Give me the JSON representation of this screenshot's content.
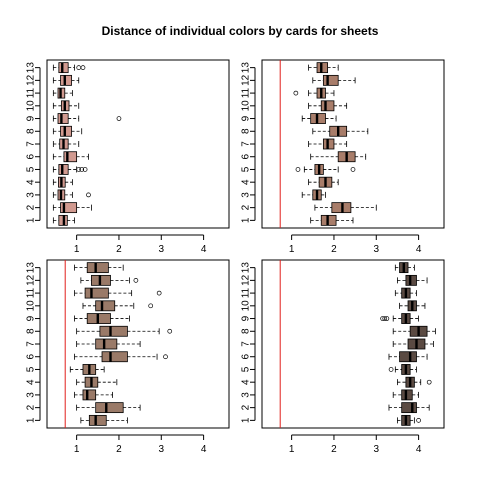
{
  "title": "Distance of individual colors by cards for sheets",
  "colors": {
    "box_fills": [
      "#d19a90",
      "#a87d6a",
      "#9a7a68",
      "#5a4a42"
    ],
    "reference_line": "#e0201c",
    "axes": "#000000"
  },
  "chart_data": [
    {
      "type": "boxplot",
      "orientation": "horizontal",
      "position": "top-left",
      "categories": [
        "1",
        "2",
        "3",
        "4",
        "5",
        "6",
        "7",
        "8",
        "9",
        "10",
        "11",
        "12",
        "13"
      ],
      "xticks": [
        1,
        2,
        3,
        4
      ],
      "xlim": [
        0.3,
        4.6
      ],
      "reference_line": null,
      "boxes": [
        {
          "min": 0.45,
          "q1": 0.58,
          "median": 0.7,
          "q3": 0.78,
          "max": 0.95,
          "outliers": []
        },
        {
          "min": 0.45,
          "q1": 0.62,
          "median": 0.7,
          "q3": 1.0,
          "max": 1.35,
          "outliers": []
        },
        {
          "min": 0.45,
          "q1": 0.56,
          "median": 0.63,
          "q3": 0.72,
          "max": 0.9,
          "outliers": [
            1.28
          ]
        },
        {
          "min": 0.45,
          "q1": 0.57,
          "median": 0.64,
          "q3": 0.73,
          "max": 0.9,
          "outliers": []
        },
        {
          "min": 0.45,
          "q1": 0.58,
          "median": 0.66,
          "q3": 0.8,
          "max": 1.0,
          "outliers": [
            1.05,
            1.12,
            1.2
          ]
        },
        {
          "min": 0.45,
          "q1": 0.7,
          "median": 0.78,
          "q3": 1.0,
          "max": 1.28,
          "outliers": []
        },
        {
          "min": 0.45,
          "q1": 0.6,
          "median": 0.69,
          "q3": 0.8,
          "max": 1.05,
          "outliers": []
        },
        {
          "min": 0.45,
          "q1": 0.62,
          "median": 0.72,
          "q3": 0.88,
          "max": 1.12,
          "outliers": []
        },
        {
          "min": 0.45,
          "q1": 0.56,
          "median": 0.64,
          "q3": 0.8,
          "max": 1.05,
          "outliers": [
            2.0
          ]
        },
        {
          "min": 0.45,
          "q1": 0.64,
          "median": 0.72,
          "q3": 0.82,
          "max": 1.05,
          "outliers": []
        },
        {
          "min": 0.45,
          "q1": 0.56,
          "median": 0.62,
          "q3": 0.72,
          "max": 0.9,
          "outliers": []
        },
        {
          "min": 0.45,
          "q1": 0.62,
          "median": 0.72,
          "q3": 0.88,
          "max": 1.05,
          "outliers": []
        },
        {
          "min": 0.45,
          "q1": 0.58,
          "median": 0.66,
          "q3": 0.8,
          "max": 0.95,
          "outliers": [
            1.05,
            1.15
          ]
        }
      ]
    },
    {
      "type": "boxplot",
      "orientation": "horizontal",
      "position": "top-right",
      "categories": [
        "1",
        "2",
        "3",
        "4",
        "5",
        "6",
        "7",
        "8",
        "9",
        "10",
        "11",
        "12",
        "13"
      ],
      "xticks": [
        1,
        2,
        3,
        4
      ],
      "xlim": [
        0.3,
        4.6
      ],
      "reference_line": 0.73,
      "boxes": [
        {
          "min": 1.45,
          "q1": 1.7,
          "median": 1.85,
          "q3": 2.05,
          "max": 2.45,
          "outliers": []
        },
        {
          "min": 1.55,
          "q1": 1.95,
          "median": 2.2,
          "q3": 2.4,
          "max": 3.0,
          "outliers": []
        },
        {
          "min": 1.25,
          "q1": 1.5,
          "median": 1.6,
          "q3": 1.7,
          "max": 1.8,
          "outliers": []
        },
        {
          "min": 1.4,
          "q1": 1.65,
          "median": 1.8,
          "q3": 1.95,
          "max": 2.1,
          "outliers": []
        },
        {
          "min": 1.3,
          "q1": 1.55,
          "median": 1.65,
          "q3": 1.75,
          "max": 2.1,
          "outliers": [
            1.15,
            2.45
          ]
        },
        {
          "min": 1.45,
          "q1": 2.1,
          "median": 2.3,
          "q3": 2.5,
          "max": 2.75,
          "outliers": []
        },
        {
          "min": 1.4,
          "q1": 1.75,
          "median": 1.85,
          "q3": 2.0,
          "max": 2.3,
          "outliers": []
        },
        {
          "min": 1.5,
          "q1": 1.9,
          "median": 2.1,
          "q3": 2.3,
          "max": 2.8,
          "outliers": []
        },
        {
          "min": 1.25,
          "q1": 1.45,
          "median": 1.6,
          "q3": 1.8,
          "max": 2.05,
          "outliers": []
        },
        {
          "min": 1.4,
          "q1": 1.7,
          "median": 1.8,
          "q3": 2.0,
          "max": 2.3,
          "outliers": []
        },
        {
          "min": 1.4,
          "q1": 1.6,
          "median": 1.7,
          "q3": 1.8,
          "max": 2.0,
          "outliers": [
            1.1
          ]
        },
        {
          "min": 1.5,
          "q1": 1.75,
          "median": 1.85,
          "q3": 2.1,
          "max": 2.5,
          "outliers": []
        },
        {
          "min": 1.4,
          "q1": 1.6,
          "median": 1.7,
          "q3": 1.85,
          "max": 2.1,
          "outliers": []
        }
      ]
    },
    {
      "type": "boxplot",
      "orientation": "horizontal",
      "position": "bottom-left",
      "categories": [
        "1",
        "2",
        "3",
        "4",
        "5",
        "6",
        "7",
        "8",
        "9",
        "10",
        "11",
        "12",
        "13"
      ],
      "xticks": [
        1,
        2,
        3,
        4
      ],
      "xlim": [
        0.3,
        4.6
      ],
      "reference_line": 0.73,
      "boxes": [
        {
          "min": 1.1,
          "q1": 1.3,
          "median": 1.45,
          "q3": 1.7,
          "max": 2.2,
          "outliers": []
        },
        {
          "min": 1.0,
          "q1": 1.45,
          "median": 1.7,
          "q3": 2.1,
          "max": 2.5,
          "outliers": []
        },
        {
          "min": 0.95,
          "q1": 1.15,
          "median": 1.25,
          "q3": 1.45,
          "max": 1.85,
          "outliers": []
        },
        {
          "min": 1.0,
          "q1": 1.2,
          "median": 1.35,
          "q3": 1.5,
          "max": 1.95,
          "outliers": []
        },
        {
          "min": 0.85,
          "q1": 1.15,
          "median": 1.3,
          "q3": 1.45,
          "max": 1.65,
          "outliers": []
        },
        {
          "min": 0.95,
          "q1": 1.6,
          "median": 1.8,
          "q3": 2.2,
          "max": 2.9,
          "outliers": [
            3.1
          ]
        },
        {
          "min": 1.0,
          "q1": 1.45,
          "median": 1.65,
          "q3": 1.95,
          "max": 2.5,
          "outliers": []
        },
        {
          "min": 1.0,
          "q1": 1.55,
          "median": 1.8,
          "q3": 2.2,
          "max": 2.95,
          "outliers": [
            3.2
          ]
        },
        {
          "min": 0.95,
          "q1": 1.25,
          "median": 1.5,
          "q3": 1.8,
          "max": 2.25,
          "outliers": []
        },
        {
          "min": 1.15,
          "q1": 1.45,
          "median": 1.6,
          "q3": 1.9,
          "max": 2.35,
          "outliers": [
            2.75
          ]
        },
        {
          "min": 0.95,
          "q1": 1.2,
          "median": 1.35,
          "q3": 1.75,
          "max": 2.3,
          "outliers": [
            2.95
          ]
        },
        {
          "min": 1.1,
          "q1": 1.35,
          "median": 1.55,
          "q3": 1.8,
          "max": 2.25,
          "outliers": [
            2.4
          ]
        },
        {
          "min": 0.95,
          "q1": 1.25,
          "median": 1.45,
          "q3": 1.75,
          "max": 2.1,
          "outliers": []
        }
      ]
    },
    {
      "type": "boxplot",
      "orientation": "horizontal",
      "position": "bottom-right",
      "categories": [
        "1",
        "2",
        "3",
        "4",
        "5",
        "6",
        "7",
        "8",
        "9",
        "10",
        "11",
        "12",
        "13"
      ],
      "xticks": [
        1,
        2,
        3,
        4
      ],
      "xlim": [
        0.3,
        4.6
      ],
      "reference_line": 0.73,
      "boxes": [
        {
          "min": 3.5,
          "q1": 3.6,
          "median": 3.7,
          "q3": 3.8,
          "max": 3.9,
          "outliers": [
            4.0
          ]
        },
        {
          "min": 3.3,
          "q1": 3.6,
          "median": 3.85,
          "q3": 3.95,
          "max": 4.25,
          "outliers": []
        },
        {
          "min": 3.4,
          "q1": 3.6,
          "median": 3.7,
          "q3": 3.85,
          "max": 4.0,
          "outliers": []
        },
        {
          "min": 3.5,
          "q1": 3.7,
          "median": 3.8,
          "q3": 3.9,
          "max": 4.05,
          "outliers": [
            4.25
          ]
        },
        {
          "min": 3.45,
          "q1": 3.6,
          "median": 3.7,
          "q3": 3.8,
          "max": 3.95,
          "outliers": [
            3.35
          ]
        },
        {
          "min": 3.3,
          "q1": 3.55,
          "median": 3.8,
          "q3": 3.95,
          "max": 4.2,
          "outliers": []
        },
        {
          "min": 3.4,
          "q1": 3.75,
          "median": 3.95,
          "q3": 4.15,
          "max": 4.35,
          "outliers": []
        },
        {
          "min": 3.4,
          "q1": 3.8,
          "median": 4.0,
          "q3": 4.2,
          "max": 4.4,
          "outliers": []
        },
        {
          "min": 3.4,
          "q1": 3.6,
          "median": 3.7,
          "q3": 3.8,
          "max": 4.0,
          "outliers": [
            3.15,
            3.2,
            3.25
          ]
        },
        {
          "min": 3.55,
          "q1": 3.75,
          "median": 3.85,
          "q3": 3.95,
          "max": 4.15,
          "outliers": []
        },
        {
          "min": 3.45,
          "q1": 3.6,
          "median": 3.7,
          "q3": 3.8,
          "max": 3.95,
          "outliers": []
        },
        {
          "min": 3.5,
          "q1": 3.7,
          "median": 3.8,
          "q3": 3.95,
          "max": 4.2,
          "outliers": []
        },
        {
          "min": 3.45,
          "q1": 3.55,
          "median": 3.65,
          "q3": 3.75,
          "max": 3.9,
          "outliers": []
        }
      ]
    }
  ]
}
